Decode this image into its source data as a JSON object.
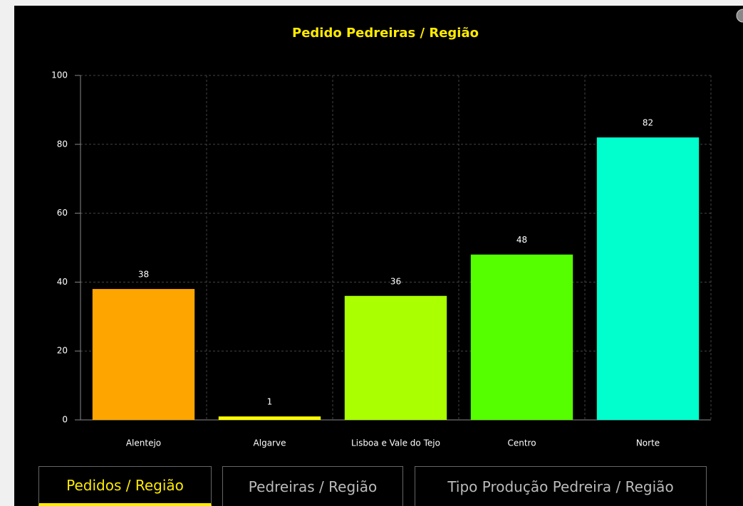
{
  "chart_data": {
    "type": "bar",
    "title": "Pedido Pedreiras / Região",
    "categories": [
      "Alentejo",
      "Algarve",
      "Lisboa e Vale do Tejo",
      "Centro",
      "Norte"
    ],
    "values": [
      38,
      1,
      36,
      48,
      82
    ],
    "colors": [
      "#ffa500",
      "#ffff00",
      "#aaff00",
      "#55ff00",
      "#00ffcc"
    ],
    "ylim": [
      0,
      100
    ],
    "yticks": [
      0,
      20,
      40,
      60,
      80,
      100
    ],
    "grid": true
  },
  "tabs": [
    {
      "label": "Pedidos / Região",
      "active": true
    },
    {
      "label": "Pedreiras / Região",
      "active": false
    },
    {
      "label": "Tipo Produção Pedreira / Região",
      "active": false
    }
  ]
}
